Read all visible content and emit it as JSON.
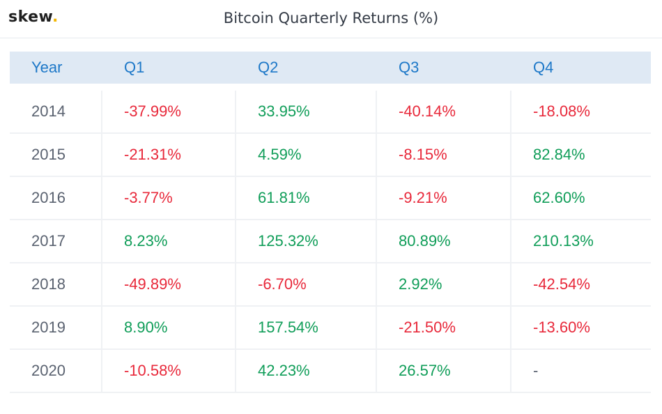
{
  "brand": {
    "name": "skew",
    "dot": ".",
    "dot_color": "#f2b705"
  },
  "header": {
    "title": "Bitcoin Quarterly Returns (%)"
  },
  "colors": {
    "positive": "#0f9d58",
    "negative": "#e8283a",
    "header_text": "#1d78c8",
    "header_bg": "#dfe9f4"
  },
  "chart_data": {
    "type": "table",
    "title": "Bitcoin Quarterly Returns (%)",
    "columns": [
      "Year",
      "Q1",
      "Q2",
      "Q3",
      "Q4"
    ],
    "rows": [
      {
        "year": "2014",
        "values": [
          "-37.99%",
          "33.95%",
          "-40.14%",
          "-18.08%"
        ]
      },
      {
        "year": "2015",
        "values": [
          "-21.31%",
          "4.59%",
          "-8.15%",
          "82.84%"
        ]
      },
      {
        "year": "2016",
        "values": [
          "-3.77%",
          "61.81%",
          "-9.21%",
          "62.60%"
        ]
      },
      {
        "year": "2017",
        "values": [
          "8.23%",
          "125.32%",
          "80.89%",
          "210.13%"
        ]
      },
      {
        "year": "2018",
        "values": [
          "-49.89%",
          "-6.70%",
          "2.92%",
          "-42.54%"
        ]
      },
      {
        "year": "2019",
        "values": [
          "8.90%",
          "157.54%",
          "-21.50%",
          "-13.60%"
        ]
      },
      {
        "year": "2020",
        "values": [
          "-10.58%",
          "42.23%",
          "26.57%",
          "-"
        ]
      }
    ]
  }
}
